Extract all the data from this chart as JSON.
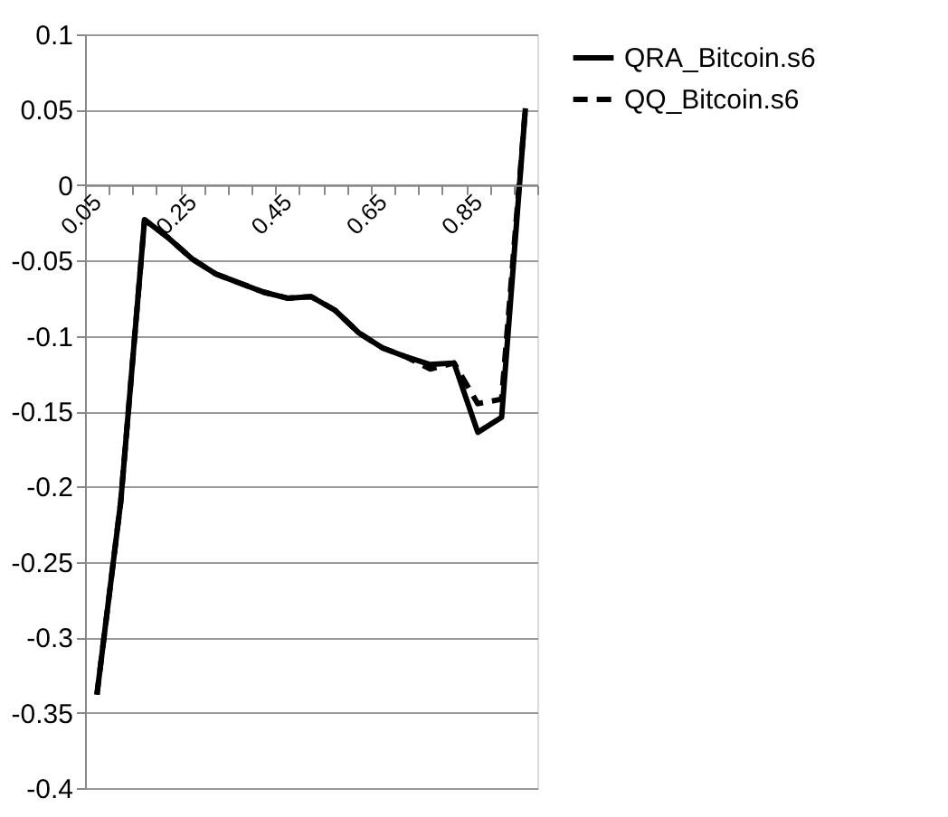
{
  "chart_data": {
    "type": "line",
    "categories": [
      "0.05",
      null,
      null,
      null,
      "0.25",
      null,
      null,
      null,
      "0.45",
      null,
      null,
      null,
      "0.65",
      null,
      null,
      null,
      "0.85",
      null,
      null
    ],
    "series": [
      {
        "name": "QRA_Bitcoin.s6",
        "color": "#000000",
        "line_style": "solid",
        "values": [
          -0.338,
          -0.21,
          -0.023,
          -0.035,
          -0.049,
          -0.059,
          -0.065,
          -0.071,
          -0.075,
          -0.074,
          -0.083,
          -0.098,
          -0.108,
          -0.114,
          -0.119,
          -0.118,
          -0.164,
          -0.154,
          0.051
        ]
      },
      {
        "name": "QQ_Bitcoin.s6",
        "color": "#000000",
        "line_style": "dashed",
        "values": [
          -0.338,
          -0.21,
          -0.023,
          -0.035,
          -0.049,
          -0.059,
          -0.065,
          -0.071,
          -0.075,
          -0.074,
          -0.083,
          -0.098,
          -0.108,
          -0.114,
          -0.122,
          -0.118,
          -0.145,
          -0.142,
          0.051
        ]
      }
    ],
    "ylim": [
      -0.4,
      0.1
    ],
    "yticks": [
      0.1,
      0.05,
      0,
      -0.05,
      -0.1,
      -0.15,
      -0.2,
      -0.25,
      -0.3,
      -0.35,
      -0.4
    ],
    "grid": "y",
    "legend": "right"
  }
}
